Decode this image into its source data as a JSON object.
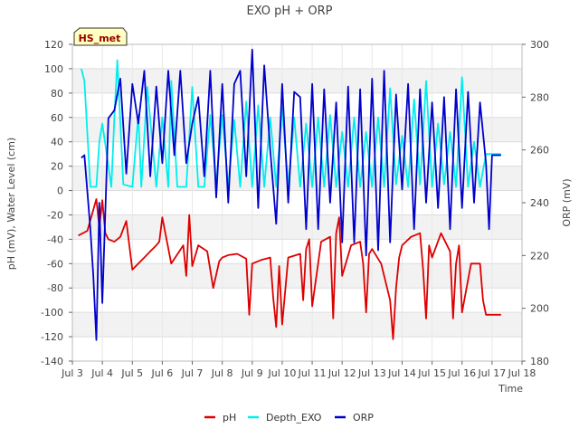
{
  "chart_data": {
    "type": "line",
    "title": "EXO pH + ORP",
    "badge": "HS_met",
    "xlabel": "Time",
    "ylabel_left": "pH (mV), Water Level (cm)",
    "ylabel_right": "ORP (mV)",
    "xlim": [
      3,
      18
    ],
    "ylim_left": [
      -140,
      120
    ],
    "ylim_right": [
      180,
      300
    ],
    "x_ticks": [
      3,
      4,
      5,
      6,
      7,
      8,
      9,
      10,
      11,
      12,
      13,
      14,
      15,
      16,
      17,
      18
    ],
    "x_tick_labels": [
      "Jul 3",
      "Jul 4",
      "Jul 5",
      "Jul 6",
      "Jul 7",
      "Jul 8",
      "Jul 9",
      "Jul 10",
      "Jul 11",
      "Jul 12",
      "Jul 13",
      "Jul 14",
      "Jul 15",
      "Jul 16",
      "Jul 17",
      "Jul 18"
    ],
    "y_ticks_left": [
      -140,
      -120,
      -100,
      -80,
      -60,
      -40,
      -20,
      0,
      20,
      40,
      60,
      80,
      100,
      120
    ],
    "y_ticks_right": [
      180,
      200,
      220,
      240,
      260,
      280,
      300
    ],
    "legend": [
      "pH",
      "Depth_EXO",
      "ORP"
    ],
    "series": [
      {
        "name": "pH",
        "axis": "left",
        "color": "#dd0000",
        "x": [
          3.2,
          3.5,
          3.8,
          3.9,
          4.0,
          4.1,
          4.2,
          4.4,
          4.6,
          4.8,
          5.0,
          5.2,
          5.4,
          5.6,
          5.8,
          5.9,
          6.0,
          6.3,
          6.7,
          6.8,
          6.9,
          7.0,
          7.2,
          7.5,
          7.7,
          7.9,
          8.0,
          8.2,
          8.5,
          8.8,
          8.9,
          9.0,
          9.3,
          9.6,
          9.7,
          9.8,
          9.9,
          10.0,
          10.2,
          10.6,
          10.7,
          10.8,
          10.9,
          11.0,
          11.3,
          11.6,
          11.7,
          11.8,
          11.9,
          12.0,
          12.3,
          12.6,
          12.7,
          12.8,
          12.9,
          13.0,
          13.3,
          13.6,
          13.7,
          13.8,
          13.9,
          14.0,
          14.3,
          14.6,
          14.7,
          14.8,
          14.9,
          15.0,
          15.3,
          15.6,
          15.7,
          15.8,
          15.9,
          16.0,
          16.3,
          16.6,
          16.7,
          16.8,
          16.9,
          17.0,
          17.3
        ],
        "y": [
          -37,
          -33,
          -7,
          -30,
          -8,
          -35,
          -40,
          -42,
          -38,
          -25,
          -65,
          -60,
          -55,
          -50,
          -45,
          -42,
          -22,
          -60,
          -45,
          -70,
          -20,
          -62,
          -45,
          -50,
          -80,
          -58,
          -55,
          -53,
          -52,
          -56,
          -102,
          -60,
          -57,
          -55,
          -88,
          -112,
          -62,
          -110,
          -55,
          -52,
          -90,
          -48,
          -40,
          -95,
          -42,
          -38,
          -105,
          -35,
          -22,
          -70,
          -45,
          -42,
          -60,
          -100,
          -52,
          -48,
          -60,
          -90,
          -122,
          -80,
          -55,
          -45,
          -38,
          -35,
          -65,
          -105,
          -45,
          -55,
          -35,
          -50,
          -105,
          -60,
          -45,
          -100,
          -60,
          -60,
          -90,
          -102,
          -102,
          -102,
          -102
        ]
      },
      {
        "name": "Depth_EXO",
        "axis": "left",
        "color": "#00eeee",
        "x": [
          3.3,
          3.4,
          3.6,
          3.8,
          3.9,
          4.0,
          4.3,
          4.4,
          4.5,
          4.7,
          5.0,
          5.2,
          5.3,
          5.5,
          5.8,
          6.0,
          6.2,
          6.3,
          6.5,
          6.8,
          7.0,
          7.2,
          7.4,
          7.6,
          7.8,
          8.0,
          8.2,
          8.4,
          8.6,
          8.8,
          9.0,
          9.2,
          9.4,
          9.6,
          9.8,
          10.0,
          10.2,
          10.4,
          10.6,
          10.8,
          11.0,
          11.2,
          11.4,
          11.6,
          11.8,
          12.0,
          12.2,
          12.4,
          12.6,
          12.8,
          13.0,
          13.2,
          13.4,
          13.6,
          13.8,
          14.0,
          14.2,
          14.4,
          14.6,
          14.8,
          15.0,
          15.2,
          15.4,
          15.6,
          15.8,
          16.0,
          16.2,
          16.4,
          16.6,
          16.8,
          17.0,
          17.3
        ],
        "y": [
          100,
          90,
          3,
          3,
          40,
          55,
          3,
          60,
          107,
          5,
          3,
          62,
          3,
          85,
          3,
          60,
          3,
          90,
          3,
          3,
          85,
          3,
          3,
          62,
          5,
          62,
          3,
          58,
          3,
          73,
          3,
          70,
          3,
          60,
          3,
          68,
          3,
          60,
          3,
          55,
          3,
          60,
          3,
          62,
          3,
          48,
          3,
          60,
          3,
          48,
          3,
          60,
          3,
          84,
          5,
          45,
          3,
          75,
          5,
          90,
          3,
          55,
          5,
          48,
          3,
          93,
          3,
          40,
          3,
          30,
          30,
          30
        ]
      },
      {
        "name": "ORP",
        "axis": "right",
        "color": "#0000cc",
        "x": [
          3.3,
          3.4,
          3.6,
          3.7,
          3.8,
          3.9,
          4.0,
          4.2,
          4.4,
          4.6,
          4.8,
          5.0,
          5.2,
          5.4,
          5.6,
          5.8,
          6.0,
          6.2,
          6.4,
          6.6,
          6.8,
          7.0,
          7.2,
          7.4,
          7.6,
          7.8,
          8.0,
          8.2,
          8.4,
          8.6,
          8.8,
          9.0,
          9.2,
          9.4,
          9.6,
          9.8,
          10.0,
          10.2,
          10.4,
          10.6,
          10.8,
          11.0,
          11.2,
          11.4,
          11.6,
          11.8,
          12.0,
          12.2,
          12.4,
          12.6,
          12.8,
          13.0,
          13.2,
          13.4,
          13.6,
          13.8,
          14.0,
          14.2,
          14.4,
          14.6,
          14.8,
          15.0,
          15.2,
          15.4,
          15.6,
          15.8,
          16.0,
          16.2,
          16.4,
          16.6,
          16.8,
          16.9,
          17.0,
          17.3
        ],
        "y": [
          257,
          258,
          230,
          212,
          188,
          240,
          202,
          272,
          275,
          287,
          251,
          285,
          270,
          290,
          250,
          284,
          255,
          290,
          258,
          290,
          255,
          270,
          280,
          250,
          290,
          242,
          285,
          240,
          285,
          290,
          250,
          298,
          238,
          292,
          260,
          232,
          285,
          240,
          282,
          280,
          230,
          285,
          230,
          283,
          240,
          278,
          225,
          284,
          225,
          283,
          220,
          287,
          222,
          290,
          225,
          281,
          245,
          285,
          230,
          283,
          240,
          278,
          238,
          280,
          230,
          283,
          238,
          282,
          240,
          278,
          255,
          230,
          258,
          258
        ]
      }
    ]
  }
}
